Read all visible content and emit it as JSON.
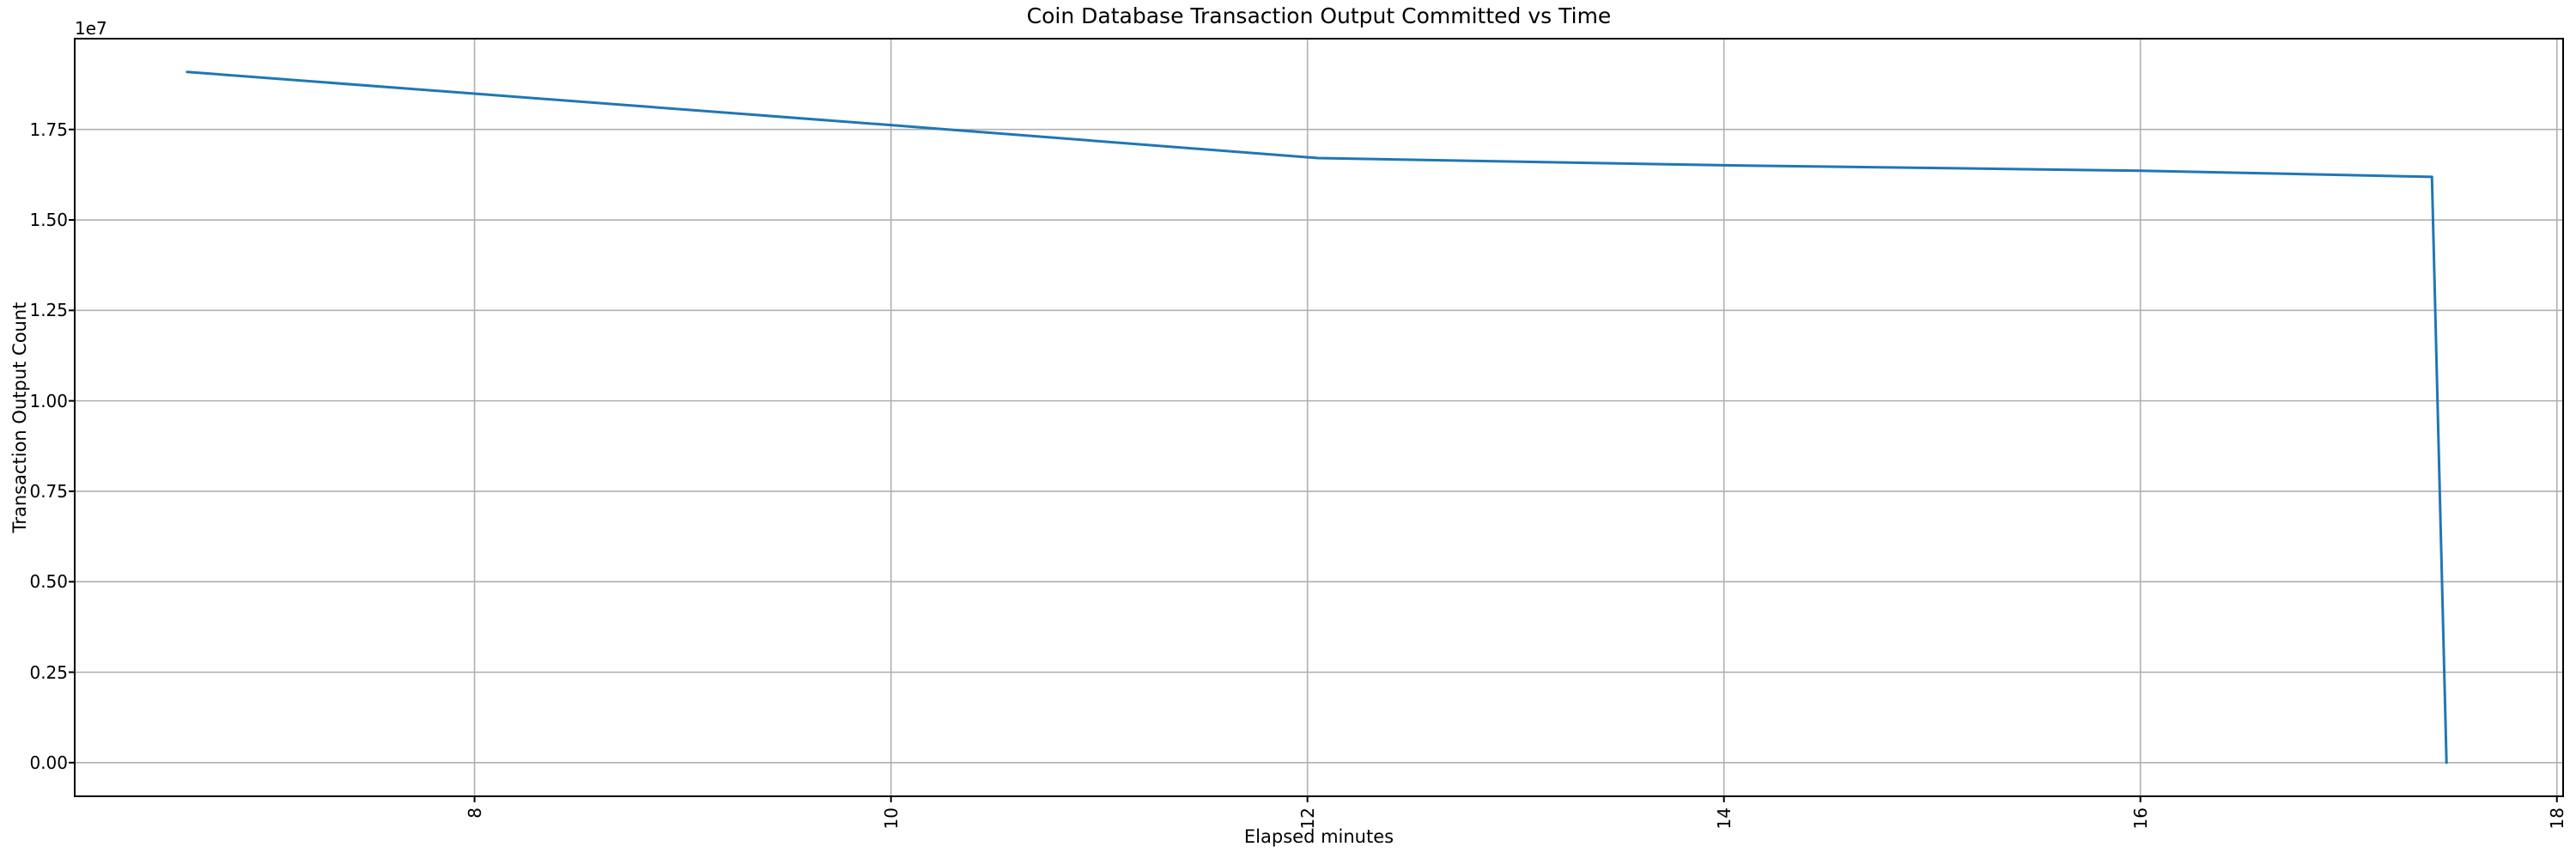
{
  "chart_data": {
    "type": "line",
    "title": "Coin Database Transaction Output Committed vs Time",
    "xlabel": "Elapsed minutes",
    "ylabel": "Transaction Output Count",
    "y_offset_text": "1e7",
    "series": [
      {
        "name": "transaction-output-count",
        "color": "#1f77b4",
        "x": [
          6.62,
          8.0,
          10.0,
          12.05,
          14.0,
          16.0,
          17.4,
          17.47
        ],
        "y": [
          19090000,
          18490000,
          17620000,
          16710000,
          16510000,
          16360000,
          16190000,
          0
        ]
      }
    ],
    "xlim": [
      6.08,
      18.03
    ],
    "ylim": [
      -930000,
      20010000
    ],
    "xtick_values": [
      8,
      10,
      12,
      14,
      16,
      18
    ],
    "xtick_labels": [
      "8",
      "10",
      "12",
      "14",
      "16",
      "18"
    ],
    "xtick_rotation": 90,
    "ytick_values": [
      0,
      2500000,
      5000000,
      7500000,
      10000000,
      12500000,
      15000000,
      17500000
    ],
    "ytick_labels": [
      "0.00",
      "0.25",
      "0.50",
      "0.75",
      "1.00",
      "1.25",
      "1.50",
      "1.75"
    ],
    "grid": true,
    "legend": false
  },
  "colors": {
    "line": "#1f77b4",
    "grid": "#b0b0b0",
    "spine": "#000000",
    "text": "#000000",
    "background": "#ffffff"
  }
}
